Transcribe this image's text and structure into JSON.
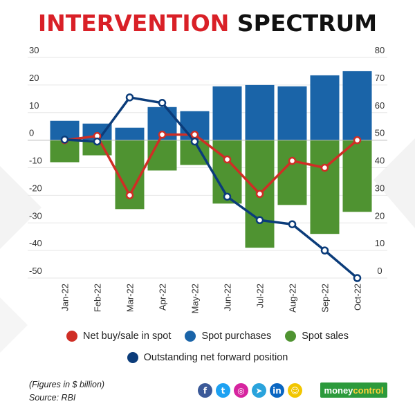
{
  "header": {
    "title_part1": "INTERVENTION",
    "title_part2": "SPECTRUM"
  },
  "colors": {
    "net_spot": "#cf2e25",
    "spot_purchases": "#1a64a8",
    "spot_sales": "#4f9331",
    "forward": "#0b3c7a"
  },
  "chart_data": {
    "type": "bar+line",
    "categories": [
      "Jan-22",
      "Feb-22",
      "Mar-22",
      "Apr-22",
      "May-22",
      "Jun-22",
      "Jul-22",
      "Aug-22",
      "Sep-22",
      "Oct-22"
    ],
    "left_axis": {
      "min": -50,
      "max": 30,
      "ticks": [
        30,
        20,
        10,
        0,
        -10,
        -20,
        -30,
        -40,
        -50
      ]
    },
    "right_axis": {
      "min": 0,
      "max": 80,
      "ticks": [
        80,
        70,
        60,
        50,
        40,
        30,
        20,
        10,
        0
      ]
    },
    "series": [
      {
        "name": "Spot purchases",
        "type": "bar",
        "axis": "left",
        "values": [
          7,
          6,
          4.5,
          12,
          10.5,
          19.5,
          20,
          19.5,
          23.5,
          25
        ]
      },
      {
        "name": "Spot sales",
        "type": "bar",
        "axis": "left",
        "values": [
          -8,
          -5.5,
          -25,
          -11,
          -9,
          -23,
          -39,
          -23.5,
          -34,
          -26
        ]
      },
      {
        "name": "Net buy/sale in spot",
        "type": "line",
        "axis": "left",
        "values": [
          0,
          1.5,
          -20,
          2,
          2,
          -7,
          -19.5,
          -7.5,
          -10,
          0
        ]
      },
      {
        "name": "Outstanding net forward  position",
        "type": "line",
        "axis": "right",
        "values": [
          50.2,
          49.5,
          65.5,
          63.5,
          49.5,
          29.5,
          21,
          19.5,
          10,
          0
        ]
      }
    ]
  },
  "legend": {
    "net_spot": "Net buy/sale in spot",
    "purchases": "Spot purchases",
    "sales": "Spot sales",
    "forward": "Outstanding net forward  position"
  },
  "footer": {
    "note": "(Figures in $ billion)",
    "source": "Source: RBI",
    "brand_part1": "money",
    "brand_part2": "control"
  },
  "social_icons": [
    {
      "name": "facebook-icon",
      "glyph": "f",
      "color": "#3b5998"
    },
    {
      "name": "twitter-icon",
      "glyph": "t",
      "color": "#1da1f2"
    },
    {
      "name": "instagram-icon",
      "glyph": "◎",
      "color": "#d6249f"
    },
    {
      "name": "telegram-icon",
      "glyph": "➤",
      "color": "#2aa3dc"
    },
    {
      "name": "linkedin-icon",
      "glyph": "in",
      "color": "#0a66c2"
    },
    {
      "name": "snapchat-icon",
      "glyph": "☺",
      "color": "#f2c600"
    }
  ]
}
